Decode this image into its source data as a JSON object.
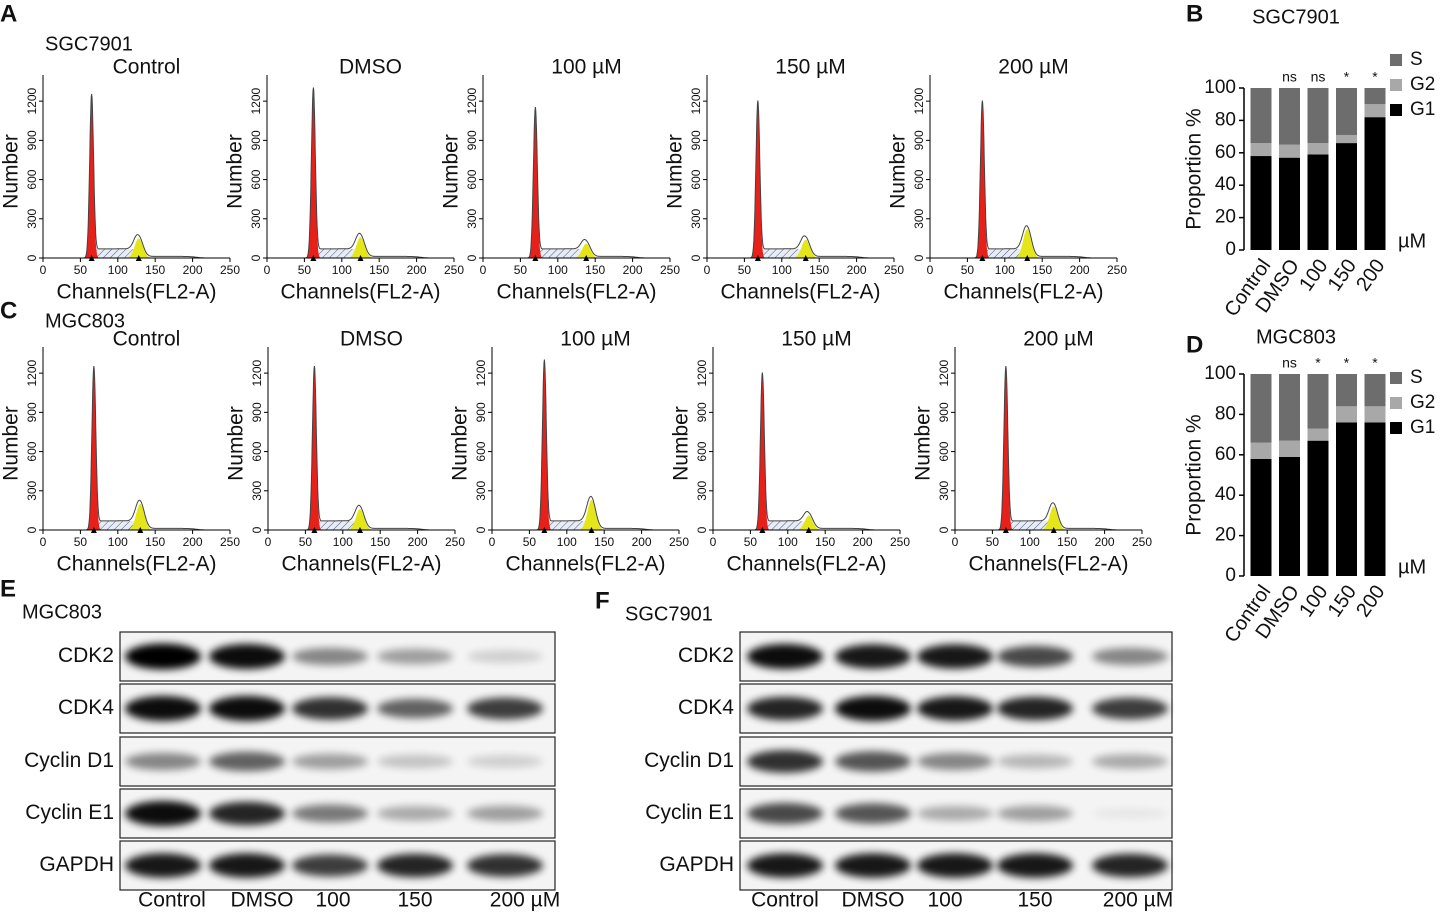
{
  "panel_labels": [
    "A",
    "B",
    "C",
    "D",
    "E",
    "F"
  ],
  "flow": [
    {
      "cell_line": "SGC7901",
      "x_label": "Channels(FL2-A)",
      "y_label": "Number",
      "xlim": [
        0,
        250
      ],
      "ylim": [
        0,
        1400
      ],
      "xticks": [
        0,
        50,
        100,
        150,
        200,
        250
      ],
      "yticks": [
        0,
        300,
        600,
        900,
        1200
      ],
      "plots": [
        {
          "title": "Control",
          "g1_peak": {
            "x": 65,
            "height": 1250
          },
          "g2_peak": {
            "x": 128,
            "height": 150
          }
        },
        {
          "title": "DMSO",
          "g1_peak": {
            "x": 62,
            "height": 1300
          },
          "g2_peak": {
            "x": 125,
            "height": 160
          }
        },
        {
          "title": "100 µM",
          "g1_peak": {
            "x": 70,
            "height": 1150
          },
          "g2_peak": {
            "x": 138,
            "height": 110
          }
        },
        {
          "title": "150 µM",
          "g1_peak": {
            "x": 68,
            "height": 1200
          },
          "g2_peak": {
            "x": 132,
            "height": 140
          }
        },
        {
          "title": "200 µM",
          "g1_peak": {
            "x": 70,
            "height": 1200
          },
          "g2_peak": {
            "x": 130,
            "height": 220
          }
        }
      ]
    },
    {
      "cell_line": "MGC803",
      "x_label": "Channels(FL2-A)",
      "y_label": "Number",
      "xlim": [
        0,
        250
      ],
      "ylim": [
        0,
        1400
      ],
      "xticks": [
        0,
        50,
        100,
        150,
        200,
        250
      ],
      "yticks": [
        0,
        300,
        600,
        900,
        1200
      ],
      "plots": [
        {
          "title": "Control",
          "g1_peak": {
            "x": 68,
            "height": 1250
          },
          "g2_peak": {
            "x": 130,
            "height": 200
          }
        },
        {
          "title": "DMSO",
          "g1_peak": {
            "x": 62,
            "height": 1250
          },
          "g2_peak": {
            "x": 123,
            "height": 160
          }
        },
        {
          "title": "100 µM",
          "g1_peak": {
            "x": 70,
            "height": 1300
          },
          "g2_peak": {
            "x": 133,
            "height": 230
          }
        },
        {
          "title": "150 µM",
          "g1_peak": {
            "x": 66,
            "height": 1200
          },
          "g2_peak": {
            "x": 128,
            "height": 110
          }
        },
        {
          "title": "200 µM",
          "g1_peak": {
            "x": 68,
            "height": 1250
          },
          "g2_peak": {
            "x": 132,
            "height": 180
          }
        }
      ]
    }
  ],
  "proportion": [
    {
      "type": "bar",
      "title": "SGC7901",
      "y_label": "Proportion %",
      "unit": "µM",
      "categories": [
        "Control",
        "DMSO",
        "100",
        "150",
        "200"
      ],
      "ylim": [
        0,
        100
      ],
      "yticks": [
        0,
        20,
        40,
        60,
        80,
        100
      ],
      "series": [
        {
          "name": "S",
          "color": "#6d6d6d",
          "values": [
            34,
            35,
            34,
            29,
            10
          ]
        },
        {
          "name": "G2",
          "color": "#a8a8a8",
          "values": [
            8,
            8,
            7,
            5,
            8
          ]
        },
        {
          "name": "G1",
          "color": "#000000",
          "values": [
            58,
            57,
            59,
            66,
            82
          ]
        }
      ],
      "annotations": [
        null,
        "ns",
        "ns",
        "*",
        "*"
      ]
    },
    {
      "type": "bar",
      "title": "MGC803",
      "y_label": "Proportion %",
      "unit": "µM",
      "categories": [
        "Control",
        "DMSO",
        "100",
        "150",
        "200"
      ],
      "ylim": [
        0,
        100
      ],
      "yticks": [
        0,
        20,
        40,
        60,
        80,
        100
      ],
      "series": [
        {
          "name": "S",
          "color": "#6d6d6d",
          "values": [
            34,
            33,
            27,
            16,
            16
          ]
        },
        {
          "name": "G2",
          "color": "#a8a8a8",
          "values": [
            8,
            8,
            6,
            8,
            8
          ]
        },
        {
          "name": "G1",
          "color": "#000000",
          "values": [
            58,
            59,
            67,
            76,
            76
          ]
        }
      ],
      "annotations": [
        null,
        "ns",
        "*",
        "*",
        "*"
      ]
    }
  ],
  "western": [
    {
      "cell_line": "MGC803",
      "proteins": [
        "CDK2",
        "CDK4",
        "Cyclin D1",
        "Cyclin E1",
        "GAPDH"
      ],
      "lanes": [
        "Control",
        "DMSO",
        "100",
        "150",
        "200 µM"
      ]
    },
    {
      "cell_line": "SGC7901",
      "proteins": [
        "CDK2",
        "CDK4",
        "Cyclin D1",
        "Cyclin E1",
        "GAPDH"
      ],
      "lanes": [
        "Control",
        "DMSO",
        "100",
        "150",
        "200 µM"
      ]
    }
  ]
}
